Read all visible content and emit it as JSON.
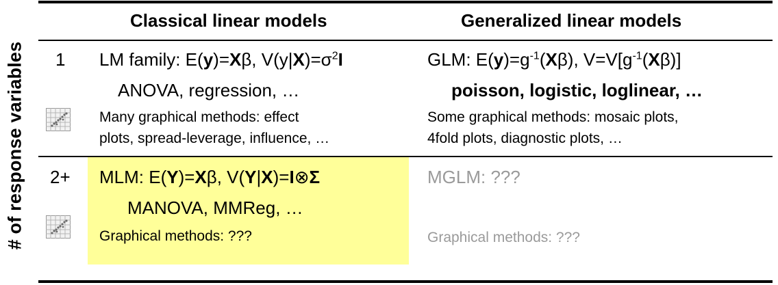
{
  "side_label": "# of response variables",
  "columns": {
    "classical": "Classical linear models",
    "generalized": "Generalized linear models"
  },
  "rows": [
    {
      "count": "1",
      "classical": {
        "formula_prefix": "LM family: E(",
        "formula_y": "y",
        "formula_mid1": ")=",
        "formula_X": "X",
        "formula_mid2": "β, V(y|",
        "formula_X2": "X",
        "formula_mid3": ")=σ",
        "formula_sup": "2",
        "formula_I": "I",
        "methods": "ANOVA, regression, …",
        "graphics_line1": "Many graphical methods:   effect",
        "graphics_line2": "plots, spread-leverage, influence, …"
      },
      "generalized": {
        "formula_prefix": "GLM: E(",
        "formula_y": "y",
        "formula_mid1": ")=g",
        "formula_sup1": "-1",
        "formula_mid2": "(",
        "formula_X": "X",
        "formula_mid3": "β), V=V[g",
        "formula_sup2": "-1",
        "formula_mid4": "(",
        "formula_X2": "X",
        "formula_mid5": "β)]",
        "methods": "poisson, logistic, loglinear, …",
        "graphics_line1": "Some graphical methods: mosaic plots,",
        "graphics_line2": "4fold plots, diagnostic plots, …"
      }
    },
    {
      "count": "2+",
      "classical": {
        "formula_prefix": "MLM: E(",
        "formula_Y": "Y",
        "formula_mid1": ")=",
        "formula_X": "X",
        "formula_mid2": "β, V(",
        "formula_Y2": "Y",
        "formula_mid3": "|",
        "formula_X2": "X",
        "formula_mid4": ")=",
        "formula_I": "I",
        "formula_otimes": "⊗",
        "formula_Sigma": "Σ",
        "methods": "MANOVA, MMReg, …",
        "graphics": "Graphical methods: ???"
      },
      "generalized": {
        "formula": "MGLM:  ???",
        "graphics": "Graphical methods: ???"
      }
    }
  ],
  "icons": [
    "scatterplot-matrix-icon",
    "scatterplot-matrix-icon"
  ],
  "colors": {
    "highlight": "#ffff99",
    "gray_text": "#9a9a9a"
  }
}
